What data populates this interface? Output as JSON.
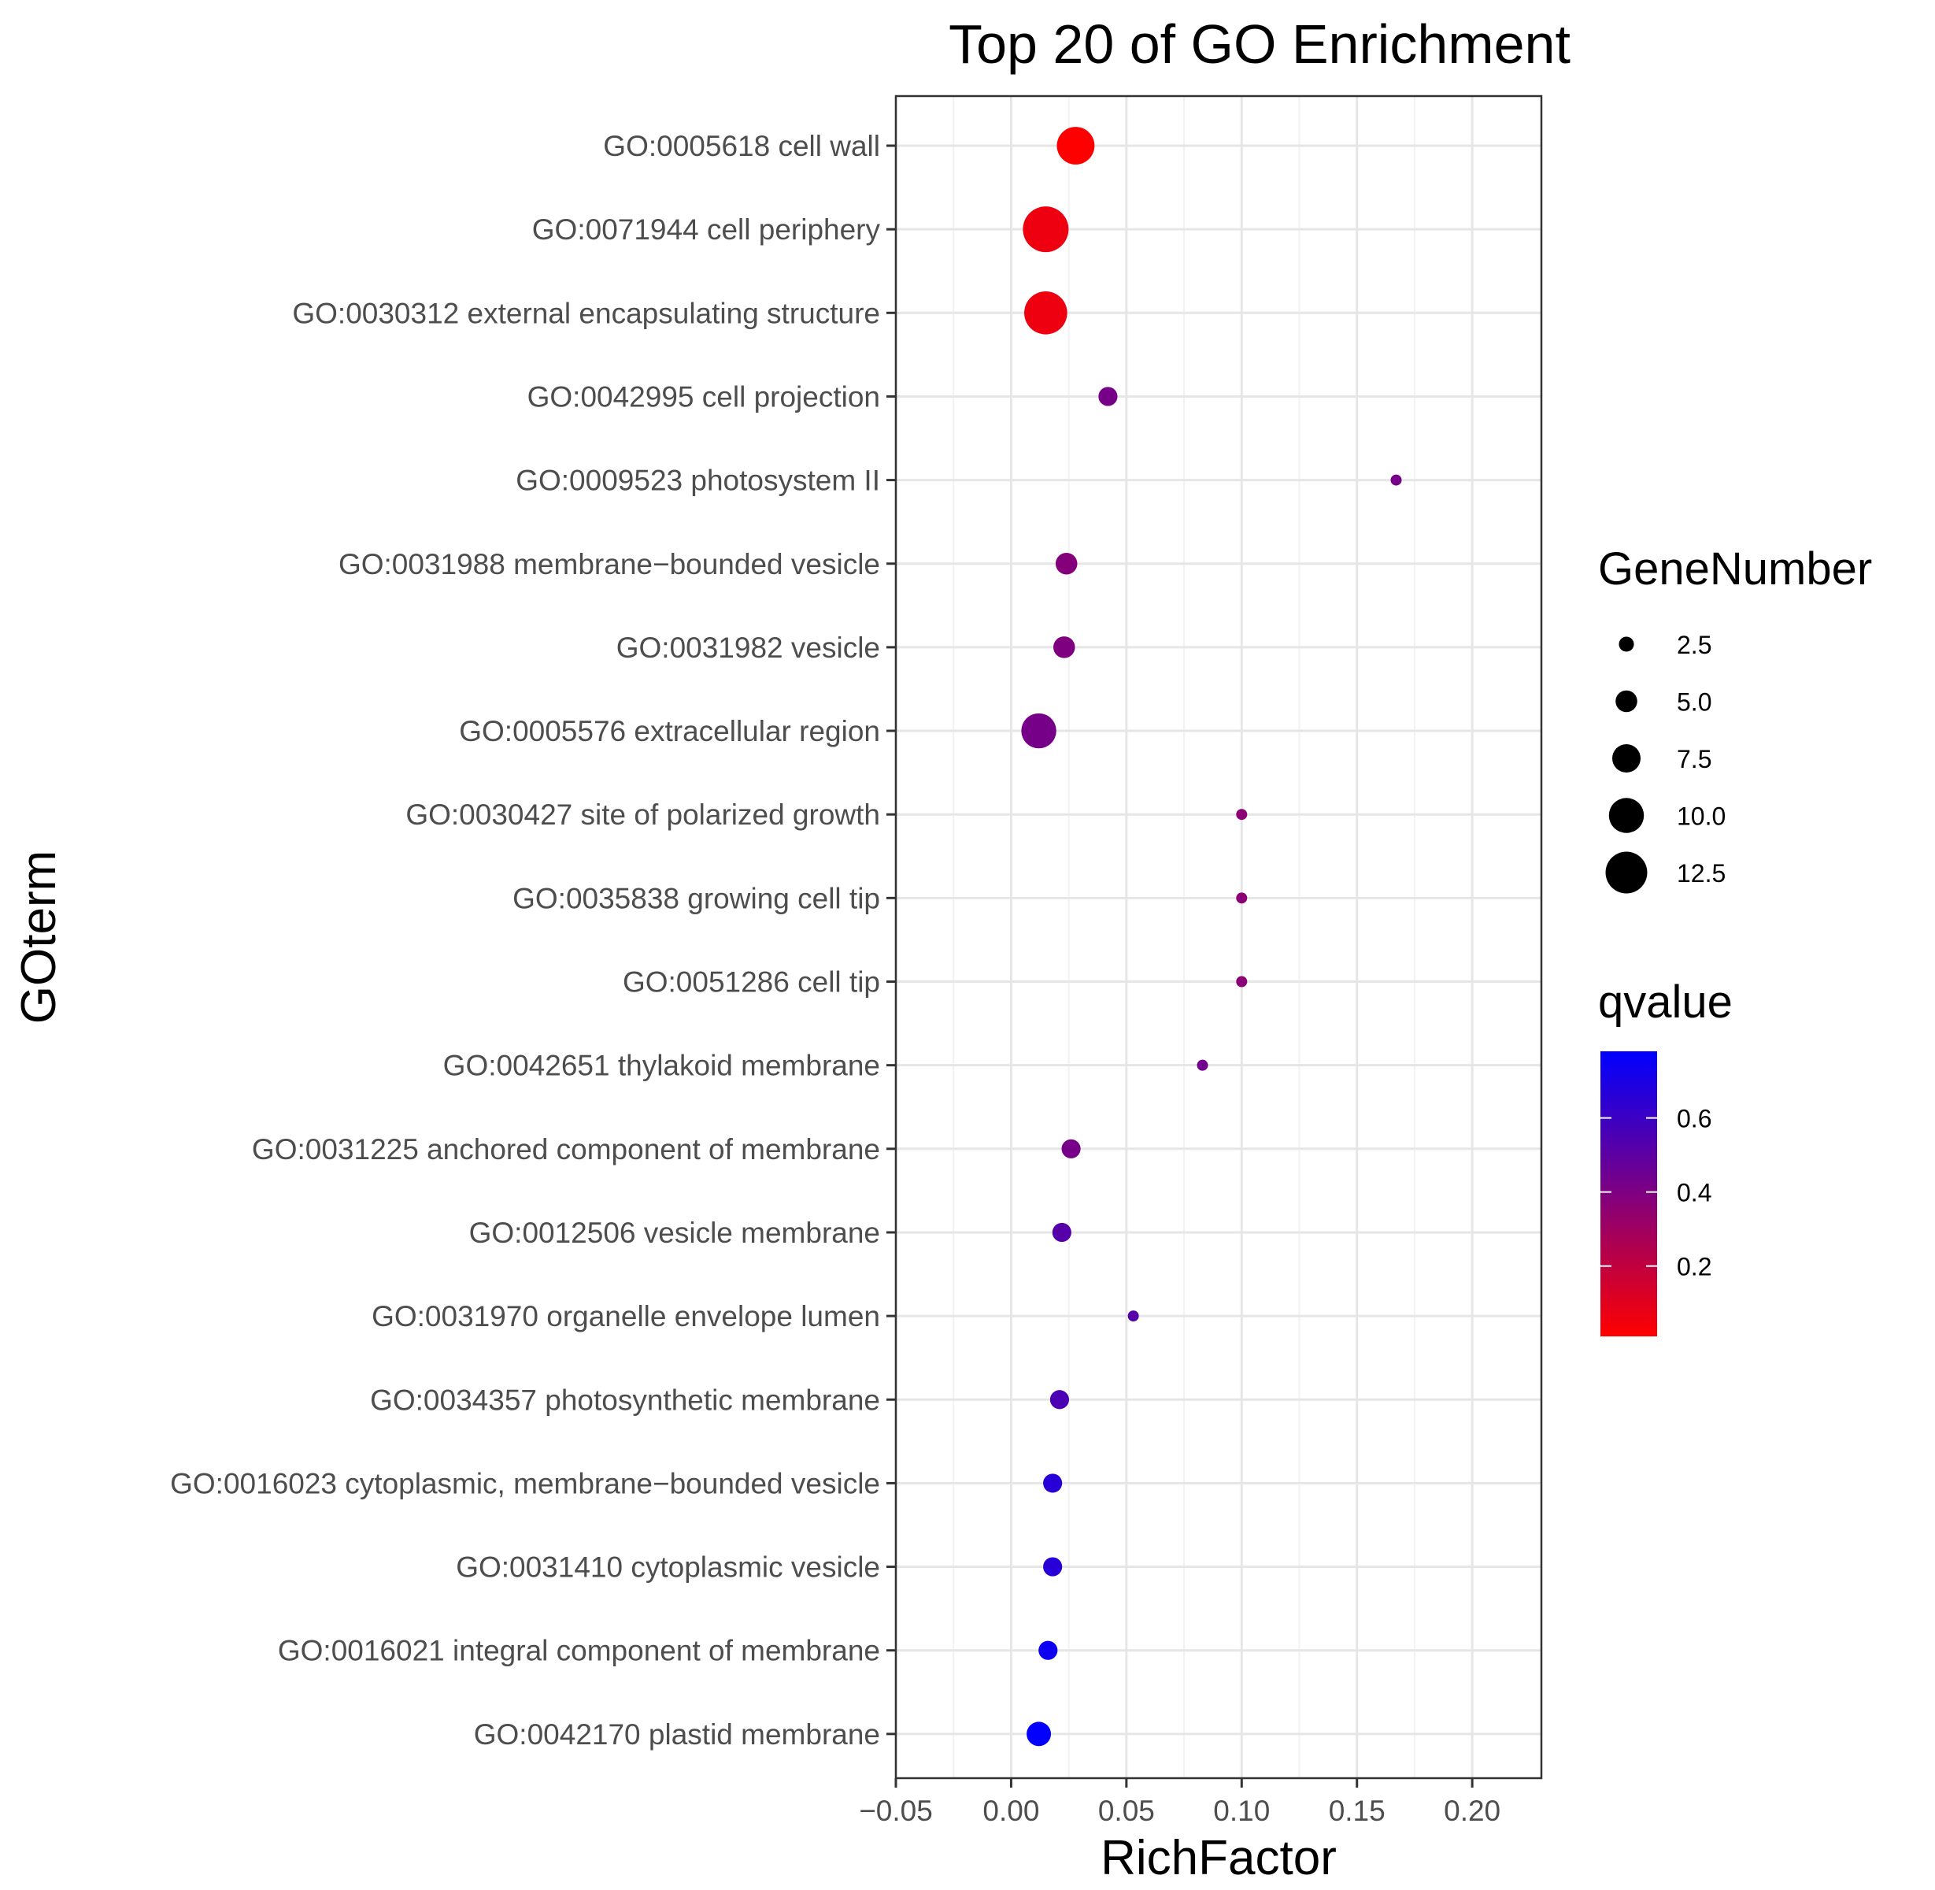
{
  "chart_data": {
    "type": "scatter",
    "title": "Top 20 of GO Enrichment",
    "xlabel": "RichFactor",
    "ylabel": "GOterm",
    "xlim": [
      -0.05,
      0.23
    ],
    "x_ticks": [
      -0.05,
      0.0,
      0.05,
      0.1,
      0.15,
      0.2
    ],
    "x_tick_labels": [
      "−0.05",
      "0.00",
      "0.05",
      "0.10",
      "0.15",
      "0.20"
    ],
    "grid": true,
    "legend_position": "right",
    "categories": [
      "GO:0005618 cell wall",
      "GO:0071944 cell periphery",
      "GO:0030312 external encapsulating structure",
      "GO:0042995 cell projection",
      "GO:0009523 photosystem II",
      "GO:0031988 membrane−bounded vesicle",
      "GO:0031982 vesicle",
      "GO:0005576 extracellular region",
      "GO:0030427 site of polarized growth",
      "GO:0035838 growing cell tip",
      "GO:0051286 cell tip",
      "GO:0042651 thylakoid membrane",
      "GO:0031225 anchored component of membrane",
      "GO:0012506 vesicle membrane",
      "GO:0031970 organelle envelope lumen",
      "GO:0034357 photosynthetic membrane",
      "GO:0016023 cytoplasmic, membrane−bounded vesicle",
      "GO:0031410 cytoplasmic vesicle",
      "GO:0016021 integral component of membrane",
      "GO:0042170 plastid membrane"
    ],
    "points": [
      {
        "rich_factor": 0.028,
        "gene_number": 11,
        "qvalue": 0.01
      },
      {
        "rich_factor": 0.015,
        "gene_number": 14,
        "qvalue": 0.06
      },
      {
        "rich_factor": 0.015,
        "gene_number": 13,
        "qvalue": 0.06
      },
      {
        "rich_factor": 0.042,
        "gene_number": 4,
        "qvalue": 0.42
      },
      {
        "rich_factor": 0.167,
        "gene_number": 1,
        "qvalue": 0.42
      },
      {
        "rich_factor": 0.024,
        "gene_number": 5,
        "qvalue": 0.38
      },
      {
        "rich_factor": 0.023,
        "gene_number": 5,
        "qvalue": 0.4
      },
      {
        "rich_factor": 0.012,
        "gene_number": 10,
        "qvalue": 0.42
      },
      {
        "rich_factor": 0.1,
        "gene_number": 1,
        "qvalue": 0.36
      },
      {
        "rich_factor": 0.1,
        "gene_number": 1,
        "qvalue": 0.36
      },
      {
        "rich_factor": 0.1,
        "gene_number": 1,
        "qvalue": 0.36
      },
      {
        "rich_factor": 0.083,
        "gene_number": 1,
        "qvalue": 0.44
      },
      {
        "rich_factor": 0.026,
        "gene_number": 4,
        "qvalue": 0.42
      },
      {
        "rich_factor": 0.022,
        "gene_number": 4,
        "qvalue": 0.52
      },
      {
        "rich_factor": 0.053,
        "gene_number": 1,
        "qvalue": 0.52
      },
      {
        "rich_factor": 0.021,
        "gene_number": 4,
        "qvalue": 0.55
      },
      {
        "rich_factor": 0.018,
        "gene_number": 4,
        "qvalue": 0.66
      },
      {
        "rich_factor": 0.018,
        "gene_number": 4,
        "qvalue": 0.66
      },
      {
        "rich_factor": 0.016,
        "gene_number": 4,
        "qvalue": 0.74
      },
      {
        "rich_factor": 0.012,
        "gene_number": 6,
        "qvalue": 0.77
      }
    ],
    "size_legend": {
      "title": "GeneNumber",
      "values": [
        2.5,
        5.0,
        7.5,
        10.0,
        12.5
      ],
      "labels": [
        "2.5",
        "5.0",
        "7.5",
        "10.0",
        "12.5"
      ]
    },
    "color_legend": {
      "title": "qvalue",
      "range": [
        0.01,
        0.78
      ],
      "ticks": [
        0.2,
        0.4,
        0.6
      ],
      "tick_labels": [
        "0.2",
        "0.4",
        "0.6"
      ],
      "low_color": "#FF0000",
      "high_color": "#0000FF"
    }
  }
}
